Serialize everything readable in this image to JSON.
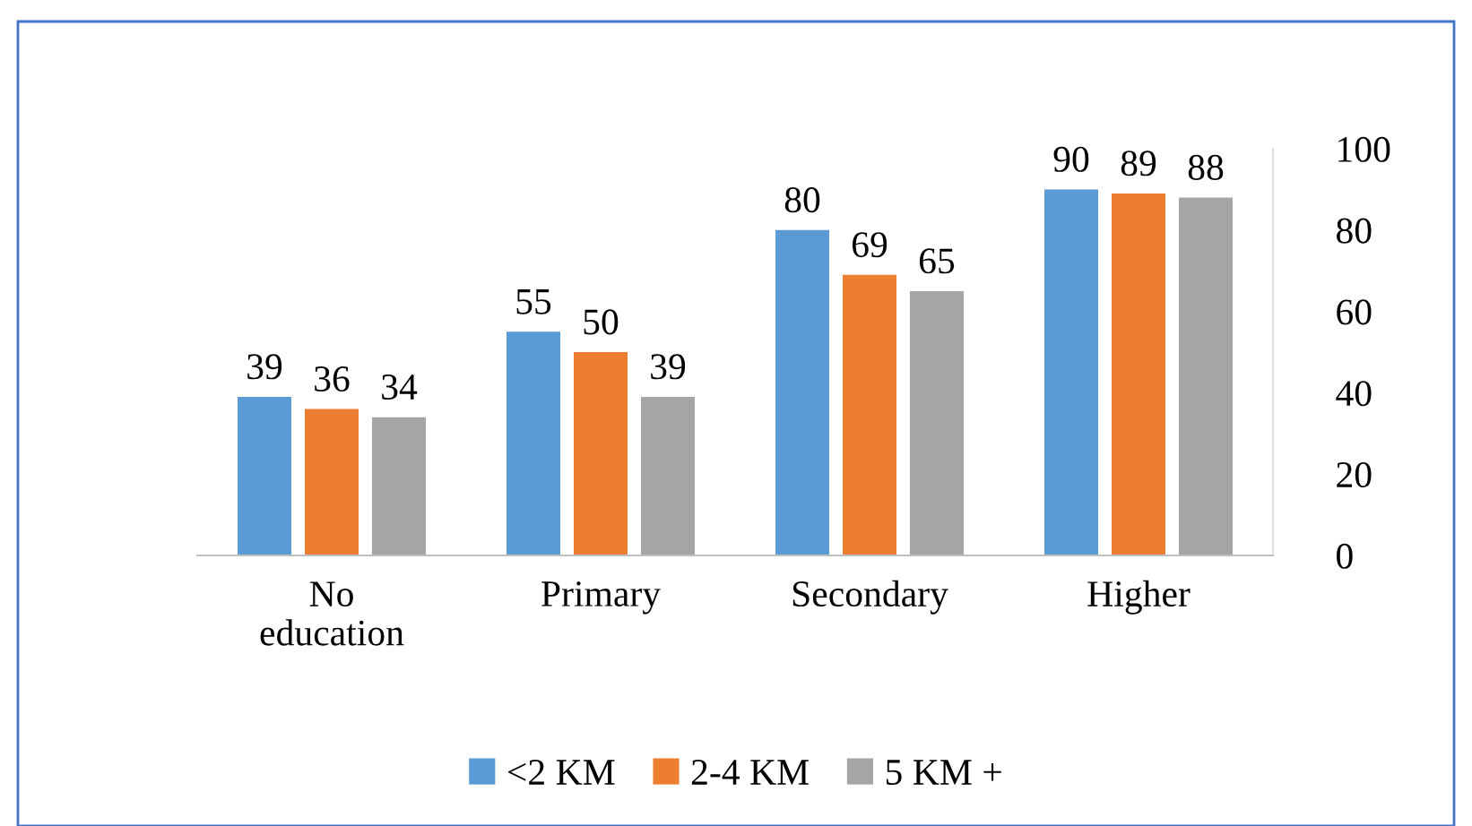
{
  "chart_data": {
    "type": "bar",
    "categories": [
      "No\neducation",
      "Primary",
      "Secondary",
      "Higher"
    ],
    "series": [
      {
        "name": "<2 KM",
        "color": "#5b9bd5",
        "values": [
          39,
          55,
          80,
          90
        ]
      },
      {
        "name": "2-4 KM",
        "color": "#ed7d31",
        "values": [
          36,
          50,
          69,
          89
        ]
      },
      {
        "name": "5 KM +",
        "color": "#a5a5a5",
        "values": [
          34,
          39,
          65,
          88
        ]
      }
    ],
    "ylim": [
      0,
      100
    ],
    "yticks": [
      0,
      20,
      40,
      60,
      80,
      100
    ],
    "data_labels": true,
    "grid": false,
    "legend": "bottom"
  }
}
